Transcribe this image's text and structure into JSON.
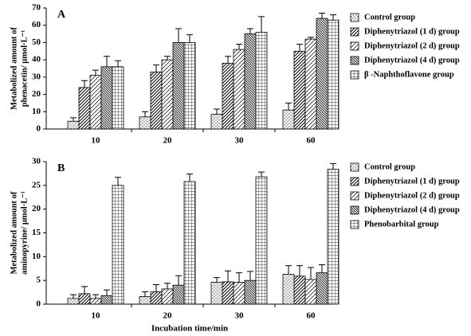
{
  "chart_data": [
    {
      "type": "bar",
      "panel_label": "A",
      "ylabel": [
        "Metabolized amount of",
        "phenacetin/ μmol·L⁻¹"
      ],
      "categories": [
        "10",
        "20",
        "30",
        "60"
      ],
      "ylim": [
        0,
        70
      ],
      "yticks": [
        0,
        10,
        20,
        30,
        40,
        50,
        60,
        70
      ],
      "series": [
        {
          "name": "Control group",
          "pattern": "dots",
          "values": [
            4.5,
            7,
            8.5,
            11
          ],
          "errors": [
            2,
            3,
            3,
            4
          ]
        },
        {
          "name": "Diphenytriazol (1 d) group",
          "pattern": "diag",
          "values": [
            24,
            33,
            38,
            45
          ],
          "errors": [
            4,
            4,
            4,
            4
          ]
        },
        {
          "name": "Diphenytriazol (2 d) group",
          "pattern": "diag2",
          "values": [
            31,
            40,
            46,
            52
          ],
          "errors": [
            3,
            2,
            3,
            1
          ]
        },
        {
          "name": "Diphenytriazol (4 d) group",
          "pattern": "diag3",
          "values": [
            36,
            50,
            55,
            64
          ],
          "errors": [
            6,
            8,
            3,
            3
          ]
        },
        {
          "name": "β -Naphthoflavone group",
          "pattern": "grid",
          "values": [
            36,
            50,
            56,
            63
          ],
          "errors": [
            3.5,
            4.5,
            9,
            3
          ]
        }
      ]
    },
    {
      "type": "bar",
      "panel_label": "B",
      "ylabel": [
        "Metabolized amount of",
        "aminopyrine/ μmol·L⁻¹"
      ],
      "xlabel": "Incubation time/min",
      "categories": [
        "10",
        "20",
        "30",
        "60"
      ],
      "ylim": [
        0,
        30
      ],
      "yticks": [
        0,
        5,
        10,
        15,
        20,
        25,
        30
      ],
      "series": [
        {
          "name": "Control group",
          "pattern": "dots",
          "values": [
            1.2,
            1.6,
            4.6,
            6.3
          ],
          "errors": [
            0.8,
            1,
            1,
            1.8
          ]
        },
        {
          "name": "Diphenytriazol (1 d) group",
          "pattern": "diag",
          "values": [
            2.2,
            2.6,
            4.7,
            5.9
          ],
          "errors": [
            1.5,
            1.5,
            2.3,
            2.2
          ]
        },
        {
          "name": "Diphenytriazol (2 d) group",
          "pattern": "diag2",
          "values": [
            1.2,
            3.2,
            4.6,
            5.2
          ],
          "errors": [
            0.8,
            1.2,
            2,
            2.5
          ]
        },
        {
          "name": "Diphenytriazol (4 d) group",
          "pattern": "diag3",
          "values": [
            1.8,
            4,
            5,
            6.6
          ],
          "errors": [
            1.2,
            2,
            1.9,
            1.7
          ]
        },
        {
          "name": "Phenobarbital group",
          "pattern": "grid",
          "values": [
            25,
            25.8,
            26.8,
            28.4
          ],
          "errors": [
            1.7,
            1.6,
            1,
            1.2
          ]
        }
      ]
    }
  ]
}
